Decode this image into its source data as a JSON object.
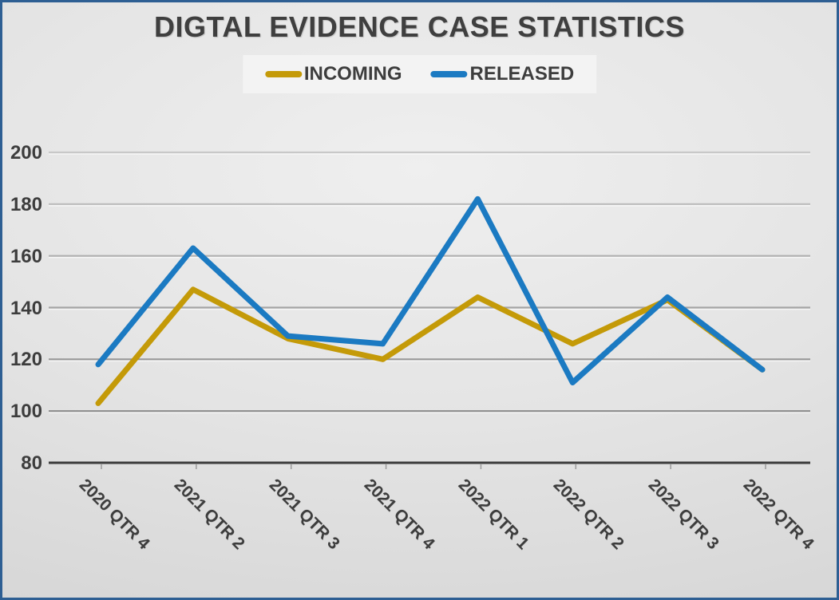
{
  "frame": {
    "border_color": "#2e5f93"
  },
  "chart_data": {
    "type": "line",
    "title": "DIGTAL EVIDENCE CASE STATISTICS",
    "categories": [
      "2020 QTR 4",
      "2021 QTR 2",
      "2021 QTR 3",
      "2021 QTR 4",
      "2022 QTR 1",
      "2022 QTR 2",
      "2022 QTR 3",
      "2022 QTR 4"
    ],
    "series": [
      {
        "name": "INCOMING",
        "color": "#C49A08",
        "values": [
          103,
          147,
          128,
          120,
          144,
          126,
          143,
          116
        ]
      },
      {
        "name": "RELEASED",
        "color": "#1B7AC2",
        "values": [
          118,
          163,
          129,
          126,
          182,
          111,
          144,
          116
        ]
      }
    ],
    "xlabel": "",
    "ylabel": "",
    "ylim": [
      80,
      200
    ],
    "yticks": [
      80,
      100,
      120,
      140,
      160,
      180,
      200
    ],
    "grid": true,
    "legend_position": "top",
    "x_label_rotation_deg": 45
  }
}
